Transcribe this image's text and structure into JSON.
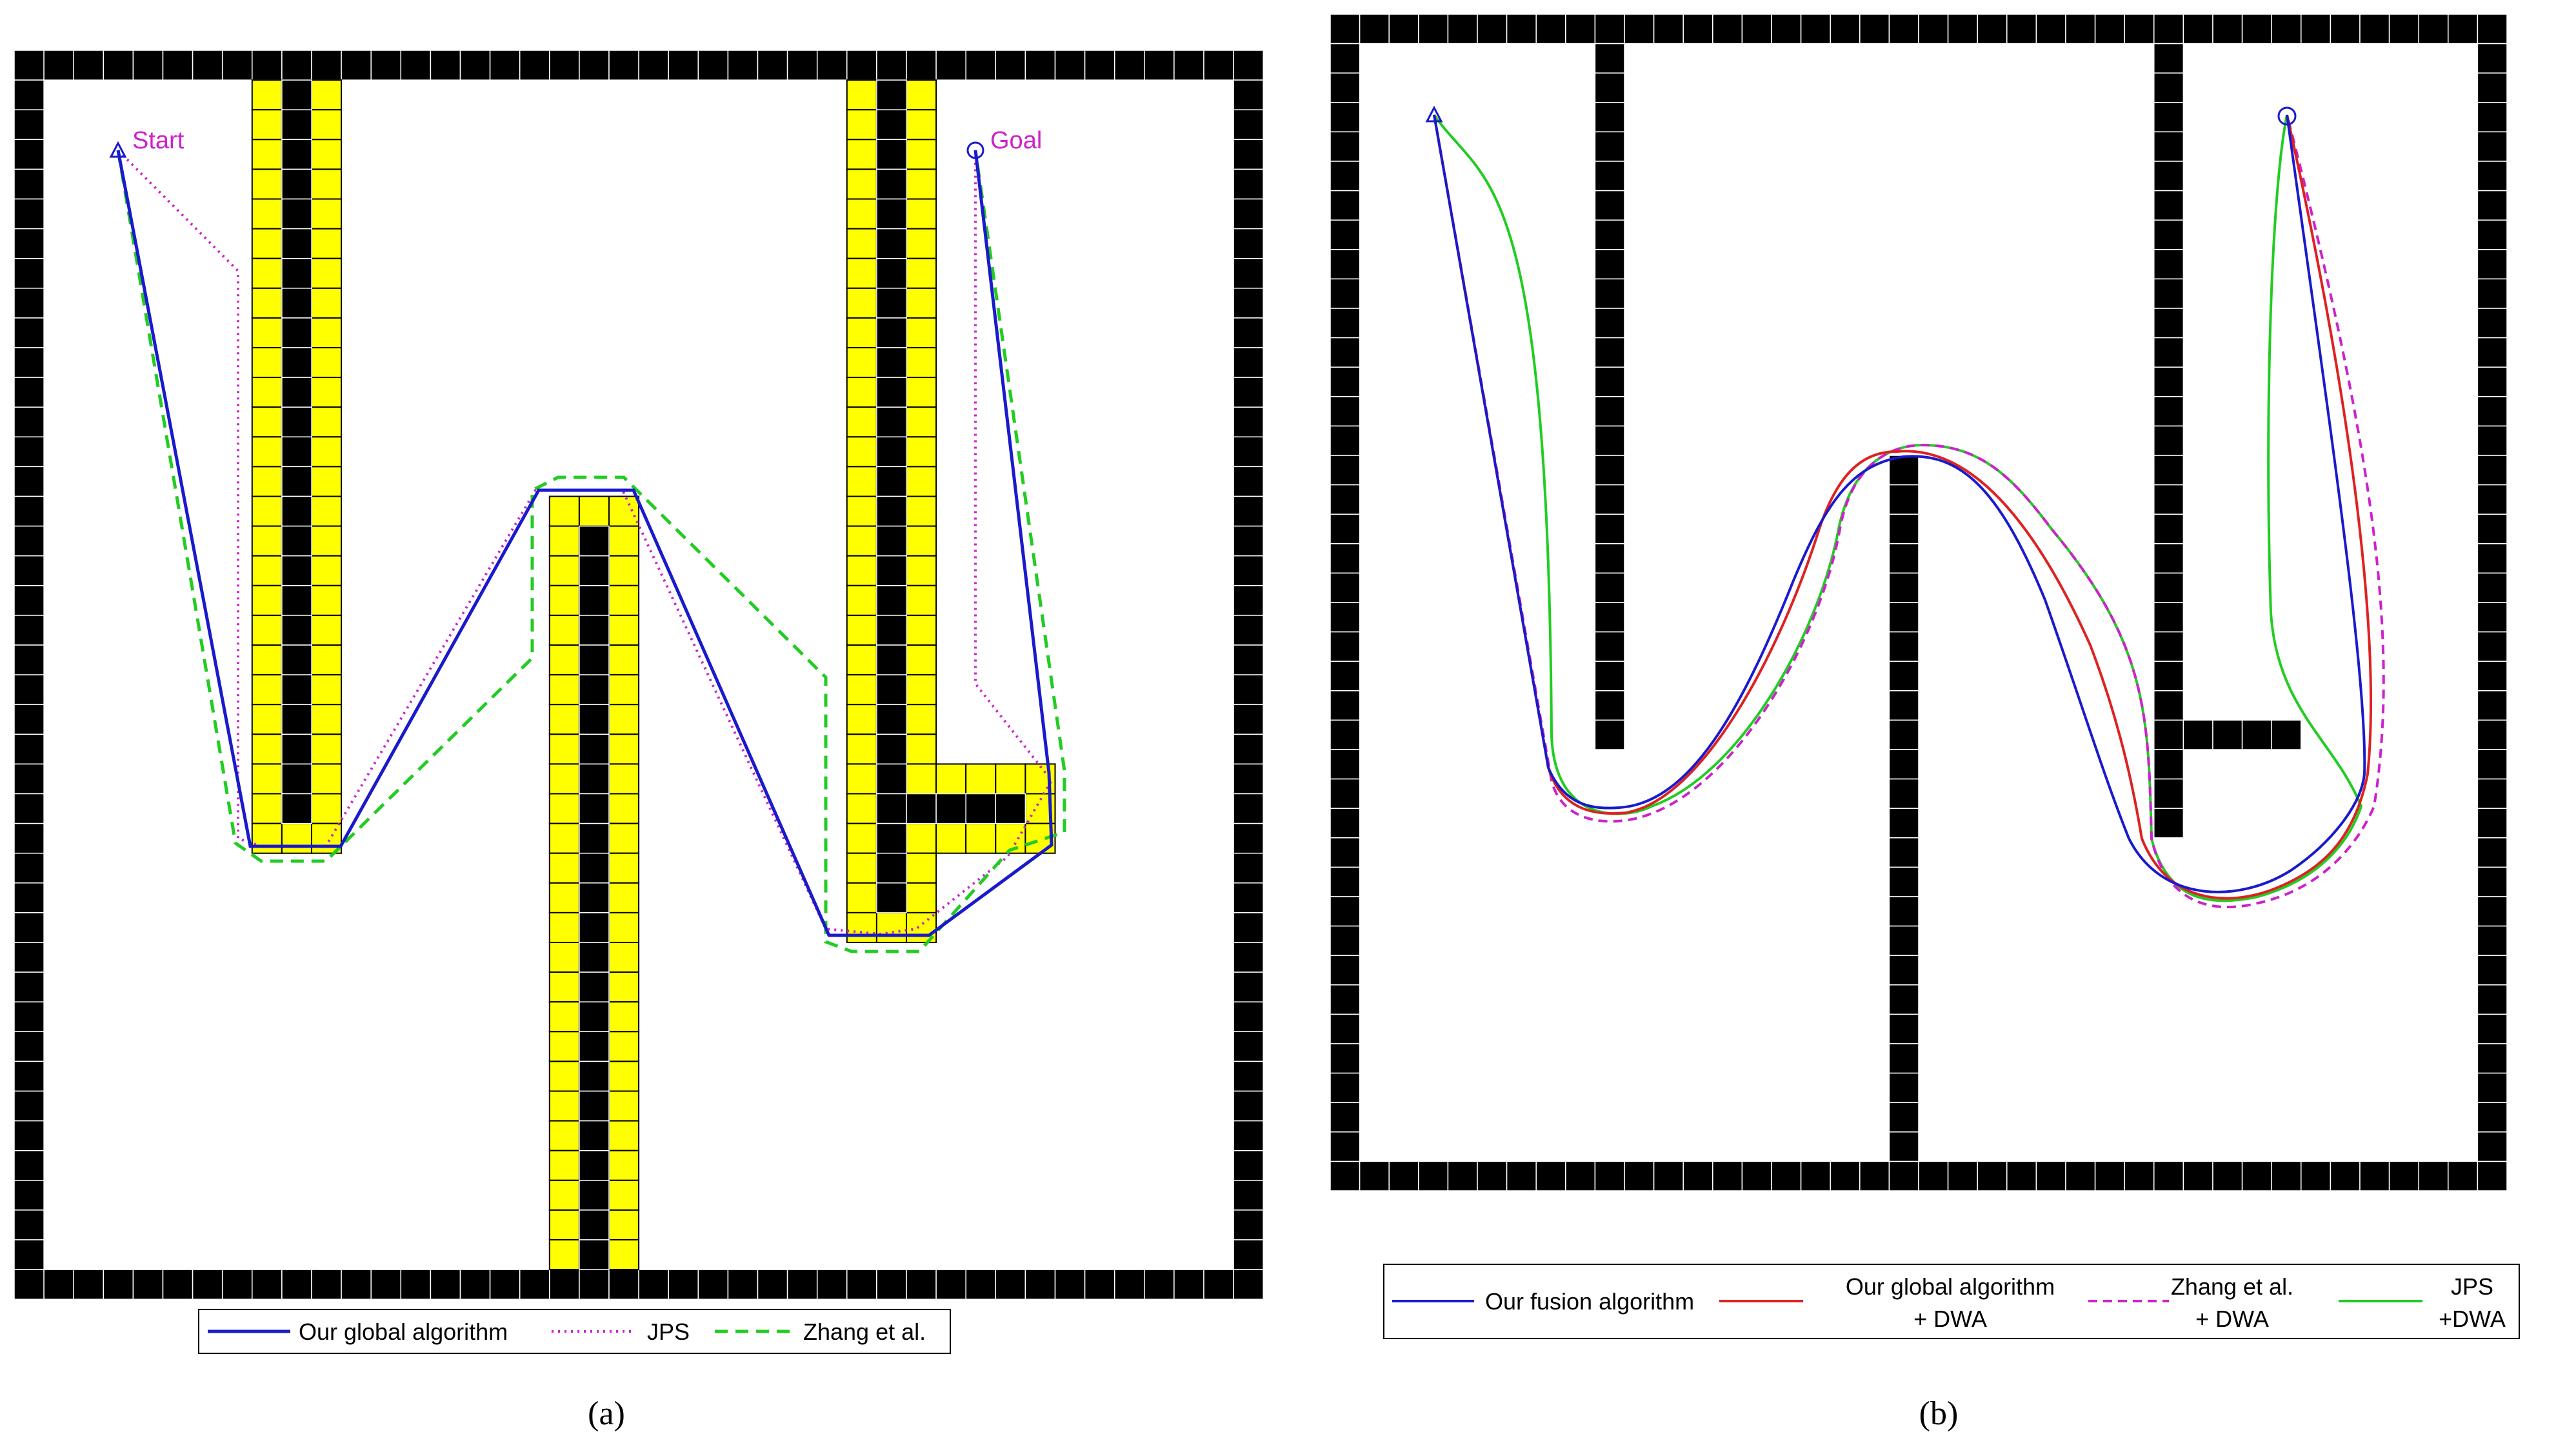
{
  "panel_a": {
    "caption": "(a)",
    "start_label": "Start",
    "goal_label": "Goal",
    "legend": [
      {
        "label": "Our global algorithm",
        "color": "#1a1acc",
        "style": "solid"
      },
      {
        "label": "JPS",
        "color": "#cc22cc",
        "style": "dotted"
      },
      {
        "label": "Zhang et al.",
        "color": "#22cc22",
        "style": "dashed"
      }
    ],
    "colors": {
      "wall": "#000000",
      "inflated": "#ffff00",
      "label": "#cc22cc"
    }
  },
  "panel_b": {
    "caption": "(b)",
    "legend": [
      {
        "lines": [
          "Our fusion algorithm"
        ],
        "color": "#1a1acc",
        "style": "solid"
      },
      {
        "lines": [
          "Our global algorithm",
          "+ DWA"
        ],
        "color": "#dd2222",
        "style": "solid"
      },
      {
        "lines": [
          "Zhang et al.",
          "+ DWA"
        ],
        "color": "#cc22cc",
        "style": "dashed"
      },
      {
        "lines": [
          "JPS",
          "+DWA"
        ],
        "color": "#22cc22",
        "style": "solid"
      }
    ],
    "colors": {
      "wall": "#000000"
    }
  }
}
